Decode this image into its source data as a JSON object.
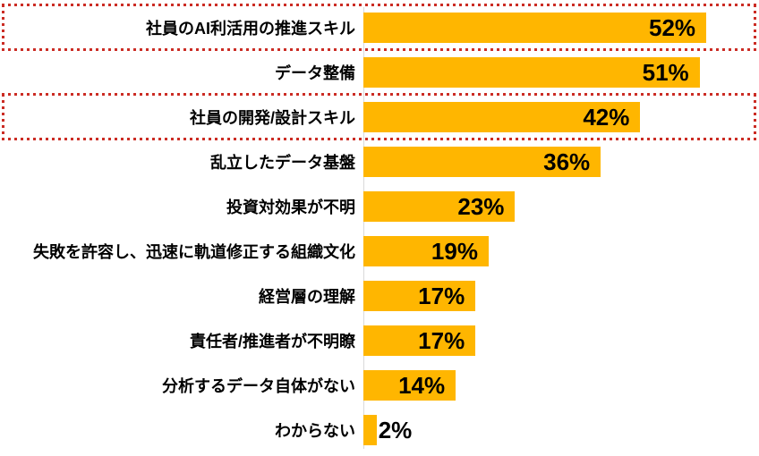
{
  "chart_data": {
    "type": "bar",
    "orientation": "horizontal",
    "title": "",
    "categories": [
      "社員のAI利活用の推進スキル",
      "データ整備",
      "社員の開発/設計スキル",
      "乱立したデータ基盤",
      "投資対効果が不明",
      "失敗を許容し、迅速に軌道修正する組織文化",
      "経営層の理解",
      "責任者/推進者が不明瞭",
      "分析するデータ自体がない",
      "わからない"
    ],
    "values": [
      52,
      51,
      42,
      36,
      23,
      19,
      17,
      17,
      14,
      2
    ],
    "value_labels": [
      "52%",
      "51%",
      "42%",
      "36%",
      "23%",
      "19%",
      "17%",
      "17%",
      "14%",
      "2%"
    ],
    "unit": "%",
    "xlim": [
      0,
      60
    ],
    "grid": false,
    "legend_position": "none",
    "highlighted_rows": [
      0,
      2
    ],
    "outside_label_threshold": 4,
    "colors": {
      "bar": "#FFB600",
      "highlight_border": "#CB2C24",
      "axis_line": "#D9D9D9",
      "text": "#000000",
      "background": "#FFFFFF"
    }
  }
}
